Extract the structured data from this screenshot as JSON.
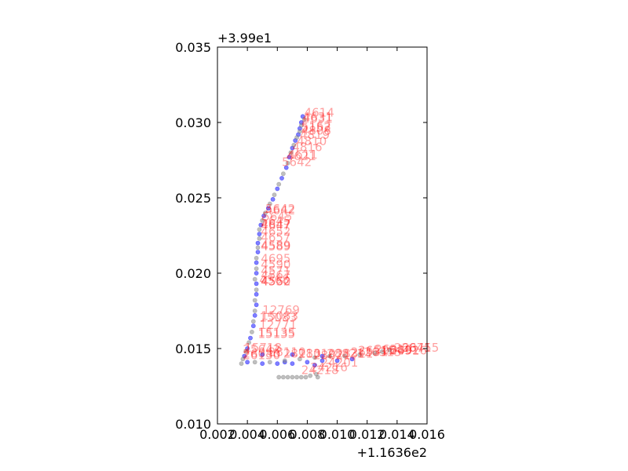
{
  "chart_data": {
    "type": "scatter",
    "title": "",
    "xlabel": "",
    "ylabel": "",
    "x_offset_label": "+1.1636e2",
    "y_offset_label": "+3.99e1",
    "xlim": [
      0.002,
      0.016
    ],
    "ylim": [
      0.01,
      0.035
    ],
    "x_ticks": [
      "0.002",
      "0.004",
      "0.006",
      "0.008",
      "0.010",
      "0.012",
      "0.014",
      "0.016"
    ],
    "y_ticks": [
      "0.010",
      "0.015",
      "0.020",
      "0.025",
      "0.030",
      "0.035"
    ],
    "grid": false,
    "colors": {
      "series_a": "#0000ff",
      "series_b": "#808080",
      "labels": "#ff0000"
    },
    "series": [
      {
        "points": [
          [
            0.0077,
            0.0304
          ],
          [
            0.0076,
            0.03
          ],
          [
            0.0075,
            0.0296
          ],
          [
            0.0074,
            0.0292
          ],
          [
            0.0072,
            0.0288
          ],
          [
            0.007,
            0.0283
          ],
          [
            0.0068,
            0.0277
          ],
          [
            0.0066,
            0.027
          ],
          [
            0.0063,
            0.0263
          ],
          [
            0.006,
            0.0256
          ],
          [
            0.0057,
            0.0249
          ],
          [
            0.0054,
            0.0243
          ],
          [
            0.0051,
            0.0238
          ],
          [
            0.0049,
            0.0232
          ],
          [
            0.0048,
            0.0226
          ],
          [
            0.0047,
            0.022
          ],
          [
            0.0047,
            0.0214
          ],
          [
            0.0046,
            0.0207
          ],
          [
            0.0046,
            0.02
          ],
          [
            0.0046,
            0.0193
          ],
          [
            0.0046,
            0.0186
          ],
          [
            0.0046,
            0.0179
          ],
          [
            0.0045,
            0.0172
          ],
          [
            0.0044,
            0.0165
          ],
          [
            0.0042,
            0.0157
          ],
          [
            0.004,
            0.015
          ],
          [
            0.0038,
            0.0145
          ],
          [
            0.004,
            0.0141
          ],
          [
            0.005,
            0.014
          ],
          [
            0.006,
            0.014
          ],
          [
            0.007,
            0.014
          ],
          [
            0.008,
            0.0141
          ],
          [
            0.009,
            0.0142
          ],
          [
            0.01,
            0.0142
          ],
          [
            0.011,
            0.0143
          ],
          [
            0.009,
            0.0145
          ],
          [
            0.007,
            0.0146
          ],
          [
            0.005,
            0.0146
          ],
          [
            0.0085,
            0.0139
          ],
          [
            0.0065,
            0.0141
          ]
        ]
      },
      {
        "points": [
          [
            0.0078,
            0.0302
          ],
          [
            0.0076,
            0.0298
          ],
          [
            0.0075,
            0.0294
          ],
          [
            0.0073,
            0.029
          ],
          [
            0.0071,
            0.0285
          ],
          [
            0.0069,
            0.028
          ],
          [
            0.0067,
            0.0273
          ],
          [
            0.0064,
            0.0266
          ],
          [
            0.0061,
            0.0259
          ],
          [
            0.0058,
            0.0252
          ],
          [
            0.0055,
            0.0246
          ],
          [
            0.0052,
            0.024
          ],
          [
            0.005,
            0.0235
          ],
          [
            0.0048,
            0.0229
          ],
          [
            0.0048,
            0.0223
          ],
          [
            0.0047,
            0.0217
          ],
          [
            0.0046,
            0.021
          ],
          [
            0.0046,
            0.0203
          ],
          [
            0.0045,
            0.0196
          ],
          [
            0.0046,
            0.0189
          ],
          [
            0.0045,
            0.0182
          ],
          [
            0.0045,
            0.0175
          ],
          [
            0.0044,
            0.0168
          ],
          [
            0.0043,
            0.0161
          ],
          [
            0.0041,
            0.0154
          ],
          [
            0.0039,
            0.0148
          ],
          [
            0.0037,
            0.0143
          ],
          [
            0.0036,
            0.014
          ],
          [
            0.0045,
            0.0141
          ],
          [
            0.0055,
            0.0141
          ],
          [
            0.0065,
            0.0142
          ],
          [
            0.0075,
            0.0143
          ],
          [
            0.0085,
            0.0144
          ],
          [
            0.0095,
            0.0145
          ],
          [
            0.0105,
            0.0145
          ],
          [
            0.0115,
            0.0146
          ],
          [
            0.0125,
            0.0147
          ],
          [
            0.013,
            0.0148
          ],
          [
            0.0135,
            0.0149
          ],
          [
            0.0061,
            0.0131
          ],
          [
            0.0064,
            0.0131
          ],
          [
            0.0067,
            0.0131
          ],
          [
            0.007,
            0.0131
          ],
          [
            0.0073,
            0.0131
          ],
          [
            0.0076,
            0.0131
          ],
          [
            0.0079,
            0.0131
          ],
          [
            0.0082,
            0.0132
          ],
          [
            0.0086,
            0.0133
          ],
          [
            0.0087,
            0.0131
          ]
        ]
      }
    ],
    "annotations": [
      {
        "text": "4614",
        "x": 0.0078,
        "y": 0.0304
      },
      {
        "text": "4631",
        "x": 0.0077,
        "y": 0.0301
      },
      {
        "text": "4631",
        "x": 0.0077,
        "y": 0.03
      },
      {
        "text": "5162",
        "x": 0.0076,
        "y": 0.0295
      },
      {
        "text": "5152",
        "x": 0.0076,
        "y": 0.0294
      },
      {
        "text": "4808",
        "x": 0.0076,
        "y": 0.0292
      },
      {
        "text": "4819",
        "x": 0.0075,
        "y": 0.0289
      },
      {
        "text": "4810",
        "x": 0.0073,
        "y": 0.0285
      },
      {
        "text": "4816",
        "x": 0.007,
        "y": 0.0281
      },
      {
        "text": "4611",
        "x": 0.0067,
        "y": 0.0276
      },
      {
        "text": "4621",
        "x": 0.0066,
        "y": 0.0275
      },
      {
        "text": "5642",
        "x": 0.0063,
        "y": 0.0271
      },
      {
        "text": "5642",
        "x": 0.0052,
        "y": 0.024
      },
      {
        "text": "4642",
        "x": 0.0052,
        "y": 0.0239
      },
      {
        "text": "5645",
        "x": 0.005,
        "y": 0.0235
      },
      {
        "text": "5645",
        "x": 0.0049,
        "y": 0.0232
      },
      {
        "text": "4647",
        "x": 0.0049,
        "y": 0.023
      },
      {
        "text": "4647",
        "x": 0.0049,
        "y": 0.0229
      },
      {
        "text": "4652",
        "x": 0.0049,
        "y": 0.0225
      },
      {
        "text": "4657",
        "x": 0.0049,
        "y": 0.0221
      },
      {
        "text": "4589",
        "x": 0.0049,
        "y": 0.0216
      },
      {
        "text": "4589",
        "x": 0.0049,
        "y": 0.0215
      },
      {
        "text": "4695",
        "x": 0.0049,
        "y": 0.0207
      },
      {
        "text": "4590",
        "x": 0.0049,
        "y": 0.0203
      },
      {
        "text": "4571",
        "x": 0.0049,
        "y": 0.0199
      },
      {
        "text": "4567",
        "x": 0.0049,
        "y": 0.0196
      },
      {
        "text": "4568",
        "x": 0.0048,
        "y": 0.0193
      },
      {
        "text": "4550",
        "x": 0.0049,
        "y": 0.0192
      },
      {
        "text": "4562",
        "x": 0.0049,
        "y": 0.0192
      },
      {
        "text": "12769",
        "x": 0.005,
        "y": 0.0173
      },
      {
        "text": "15083",
        "x": 0.0049,
        "y": 0.0169
      },
      {
        "text": "15083",
        "x": 0.0048,
        "y": 0.0168
      },
      {
        "text": "12771",
        "x": 0.0048,
        "y": 0.0163
      },
      {
        "text": "15135",
        "x": 0.0047,
        "y": 0.0158
      },
      {
        "text": "15135",
        "x": 0.0047,
        "y": 0.0157
      },
      {
        "text": "15718",
        "x": 0.0038,
        "y": 0.0148
      },
      {
        "text": "25642",
        "x": 0.0037,
        "y": 0.0147
      },
      {
        "text": "26080",
        "x": 0.0037,
        "y": 0.0144
      },
      {
        "text": "26130",
        "x": 0.0037,
        "y": 0.0143
      },
      {
        "text": "28110",
        "x": 0.0054,
        "y": 0.0145
      },
      {
        "text": "28110",
        "x": 0.0064,
        "y": 0.0144
      },
      {
        "text": "28310",
        "x": 0.0074,
        "y": 0.0144
      },
      {
        "text": "28821",
        "x": 0.0084,
        "y": 0.0143
      },
      {
        "text": "28821",
        "x": 0.0093,
        "y": 0.0144
      },
      {
        "text": "28311",
        "x": 0.0099,
        "y": 0.0144
      },
      {
        "text": "26531",
        "x": 0.0109,
        "y": 0.0145
      },
      {
        "text": "26515",
        "x": 0.0114,
        "y": 0.0146
      },
      {
        "text": "26315",
        "x": 0.0118,
        "y": 0.0145
      },
      {
        "text": "26316",
        "x": 0.0125,
        "y": 0.0147
      },
      {
        "text": "26492",
        "x": 0.013,
        "y": 0.0146
      },
      {
        "text": "26316",
        "x": 0.0135,
        "y": 0.0146
      },
      {
        "text": "26875",
        "x": 0.0138,
        "y": 0.0148
      },
      {
        "text": "26415",
        "x": 0.0143,
        "y": 0.0148
      },
      {
        "text": "24201",
        "x": 0.0089,
        "y": 0.0138
      },
      {
        "text": "24216",
        "x": 0.0082,
        "y": 0.0135
      },
      {
        "text": "24218",
        "x": 0.0076,
        "y": 0.0133
      }
    ]
  }
}
